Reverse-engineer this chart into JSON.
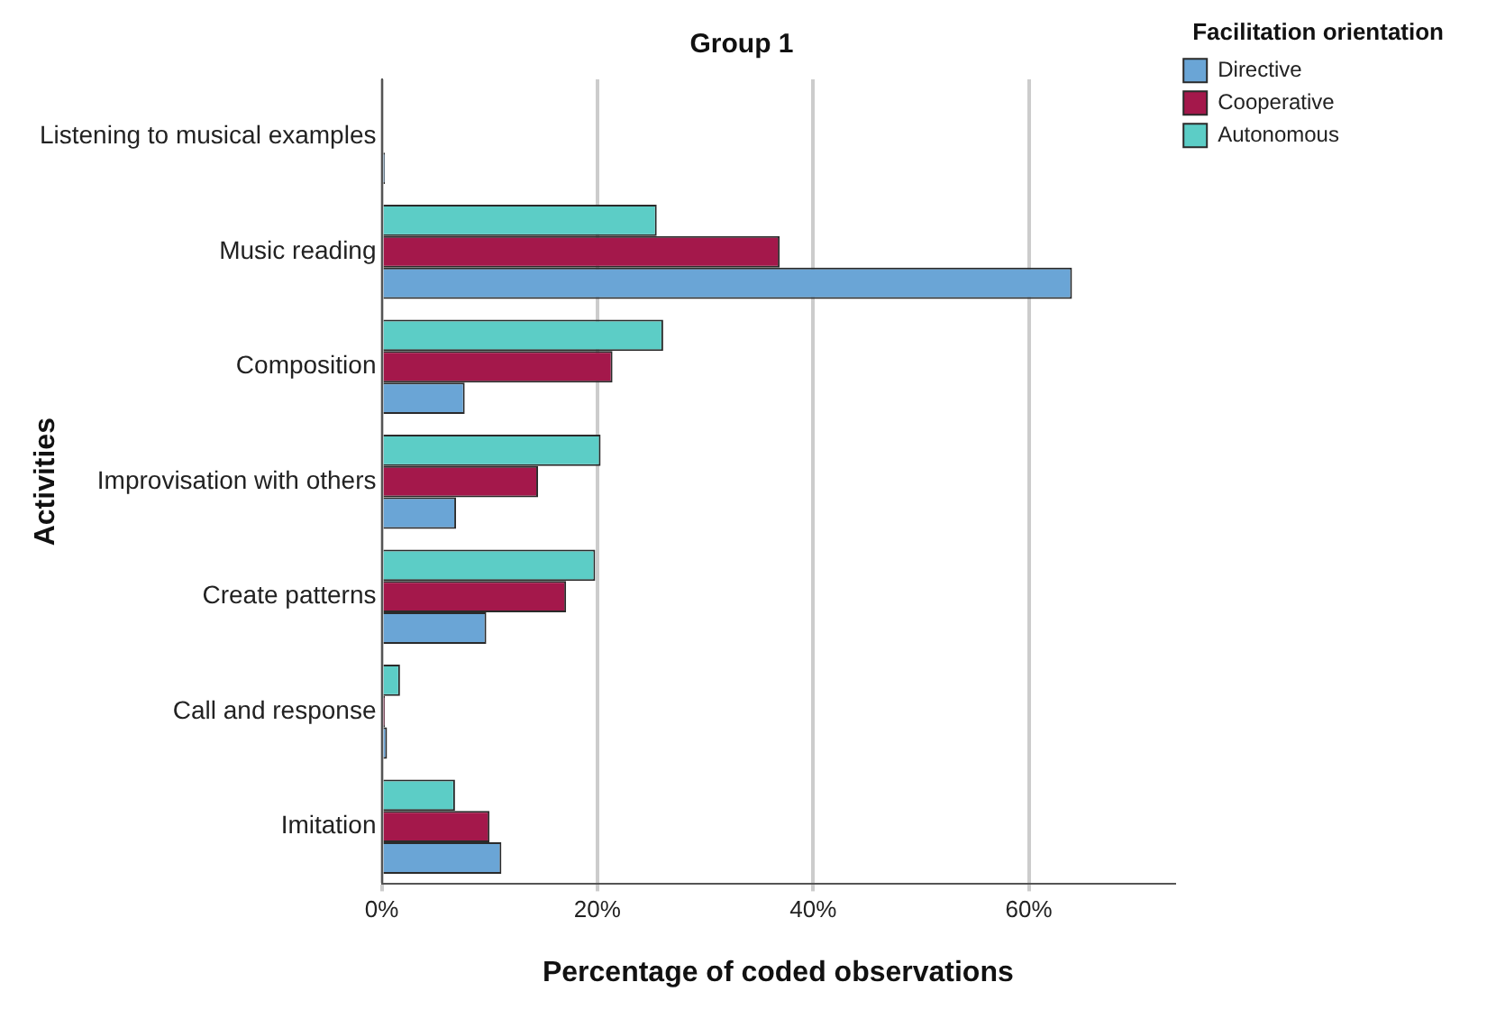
{
  "chart_data": {
    "type": "bar",
    "orientation": "horizontal",
    "title": "Group 1",
    "xlabel": "Percentage of coded observations",
    "ylabel": "Activities",
    "legend_title": "Facilitation orientation",
    "legend": "top right",
    "grid": "x",
    "categories": [
      "Listening to musical examples",
      "Music reading",
      "Composition",
      "Improvisation with others",
      "Create patterns",
      "Call and response",
      "Imitation"
    ],
    "xlim": [
      0,
      73.5
    ],
    "xticks": [
      {
        "value": 0,
        "label": "0%"
      },
      {
        "value": 20,
        "label": "20%"
      },
      {
        "value": 40,
        "label": "40%"
      },
      {
        "value": 60,
        "label": "60%"
      }
    ],
    "series": [
      {
        "name": "Directive",
        "color": "#6aa5d6",
        "values": [
          0.3,
          64.0,
          7.7,
          6.9,
          9.7,
          0.5,
          11.1
        ]
      },
      {
        "name": "Cooperative",
        "color": "#a4184b",
        "values": [
          null,
          36.9,
          21.4,
          14.5,
          17.1,
          0.3,
          10.0
        ]
      },
      {
        "name": "Autonomous",
        "color": "#5ccdc6",
        "values": [
          null,
          25.5,
          26.1,
          20.3,
          19.8,
          1.7,
          6.8
        ]
      }
    ]
  }
}
